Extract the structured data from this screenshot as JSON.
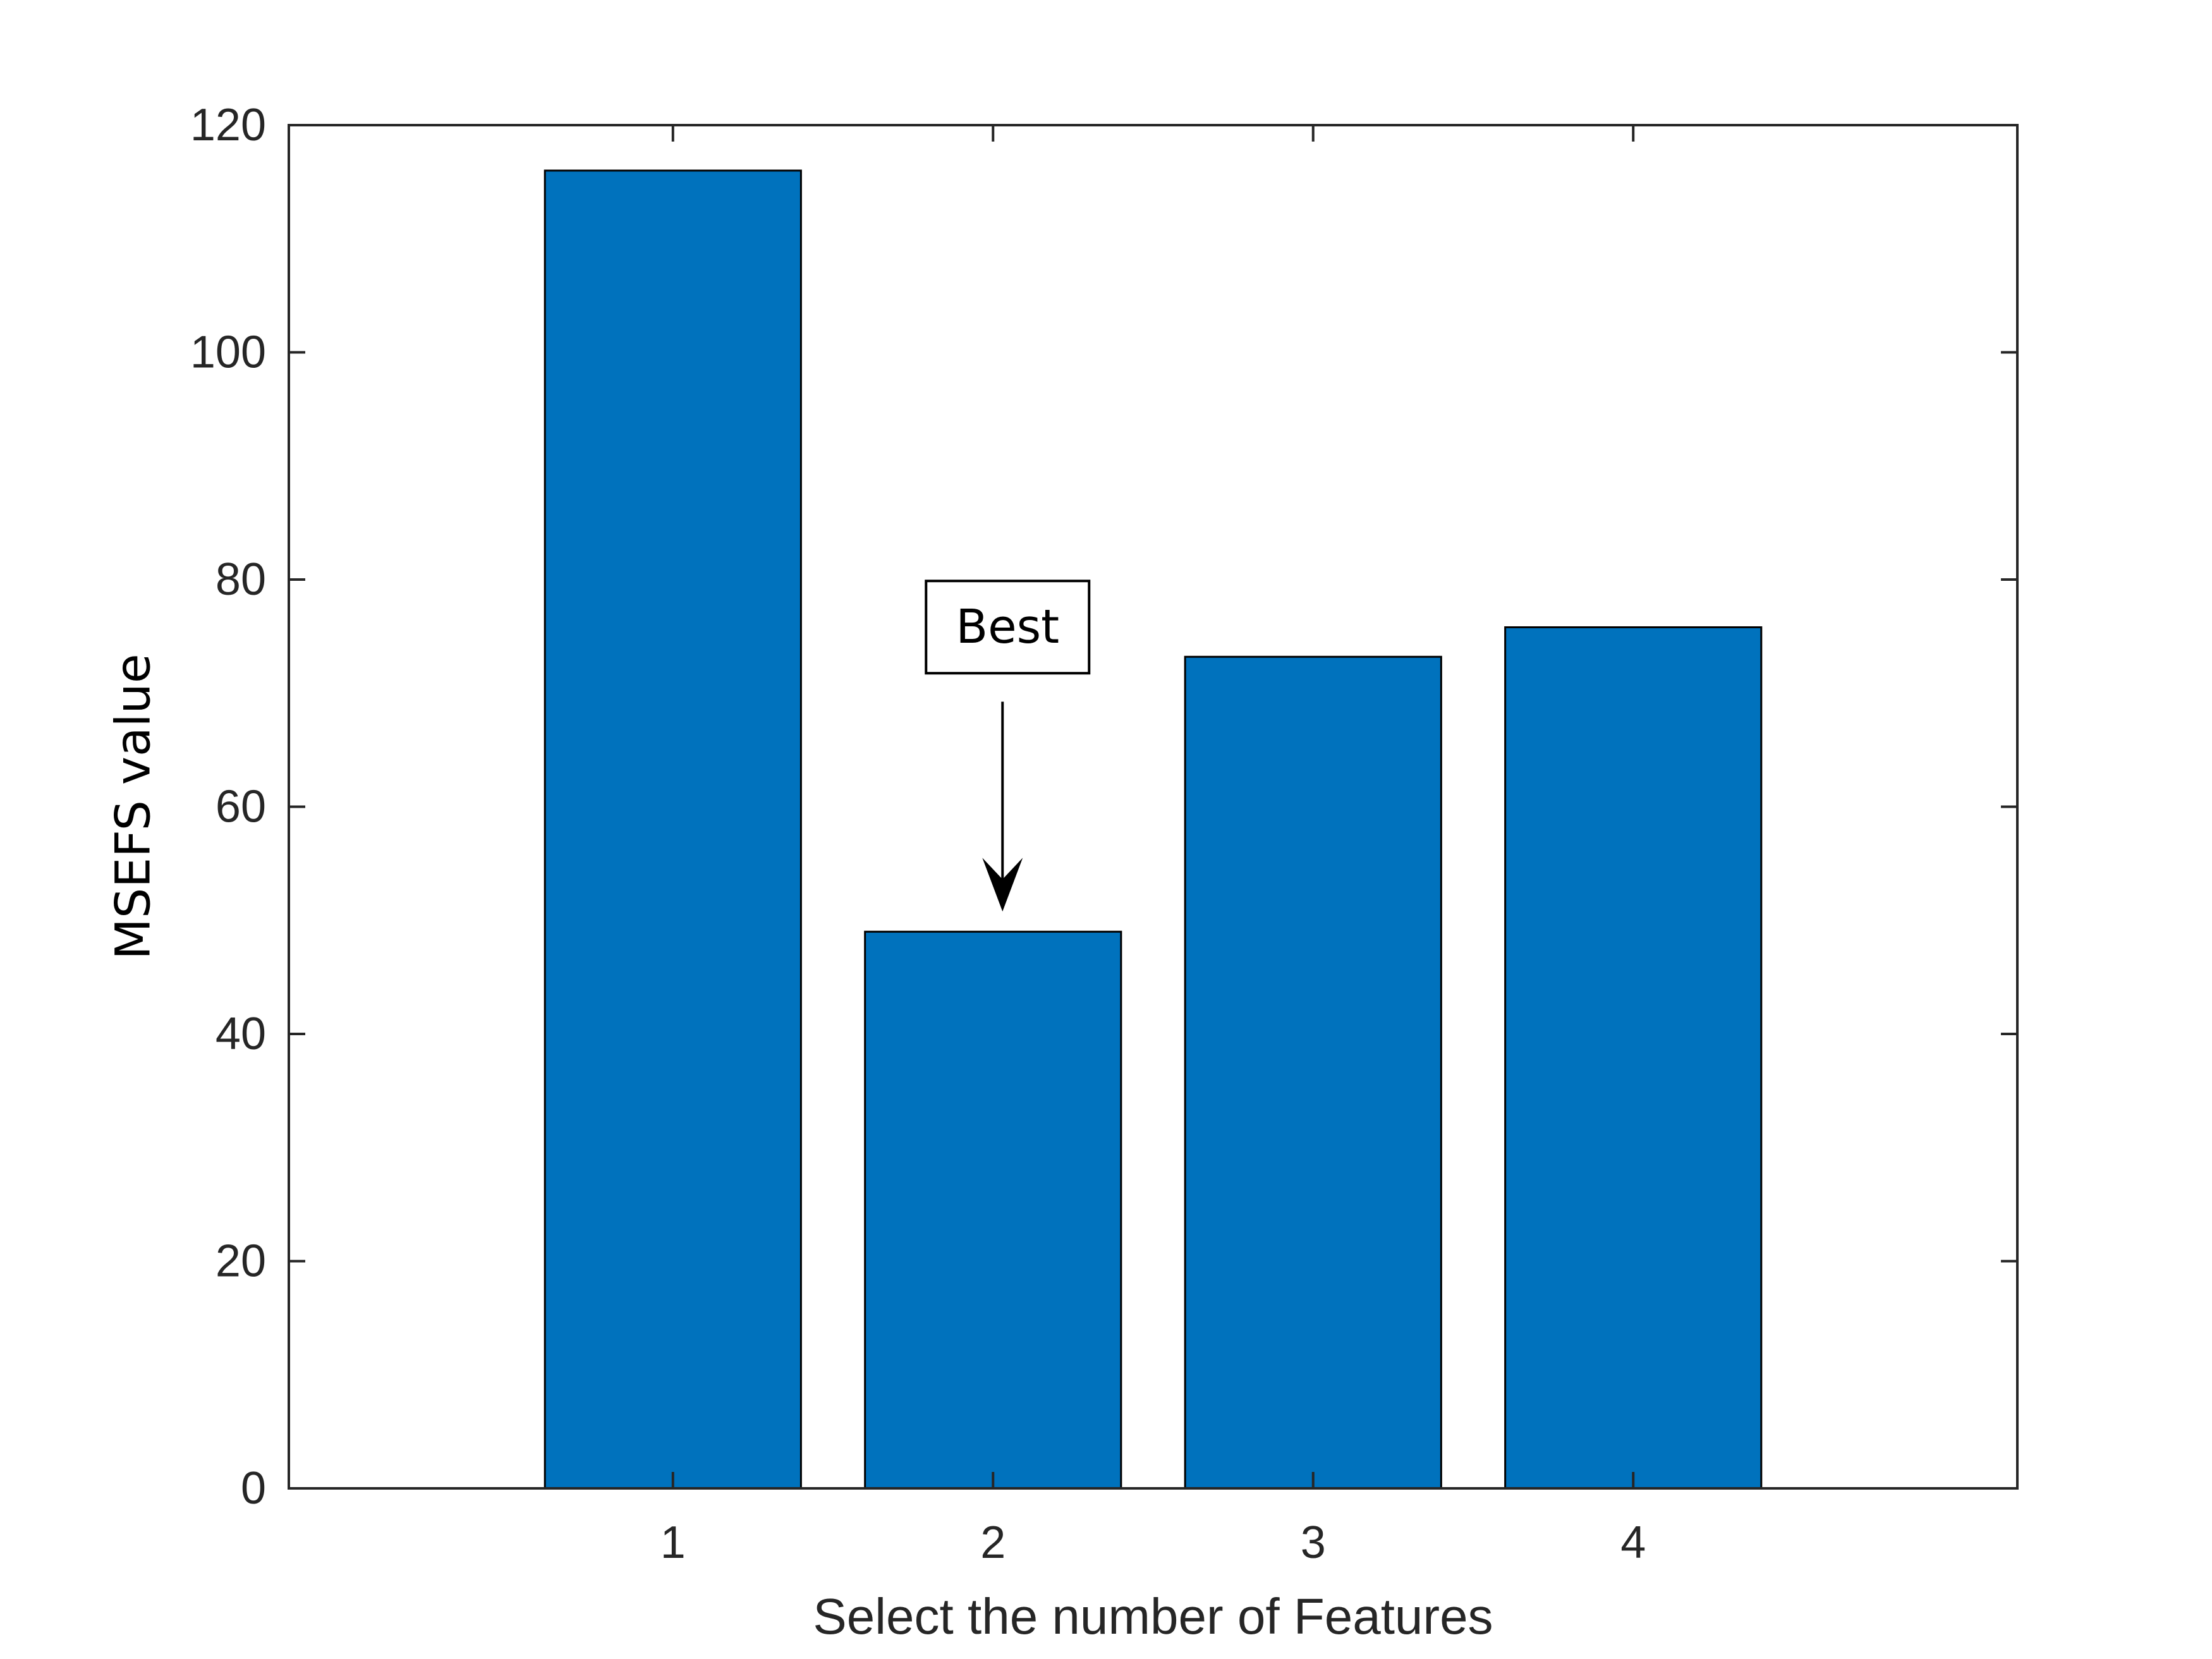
{
  "chart_data": {
    "type": "bar",
    "categories": [
      "1",
      "2",
      "3",
      "4"
    ],
    "values": [
      116,
      49,
      73.2,
      75.8
    ],
    "xlabel": "Select the number of Features",
    "ylabel": "MSEFS value",
    "ylim": [
      0,
      120
    ],
    "xlim": [
      -0.2,
      5.2
    ],
    "yticks": [
      "0",
      "20",
      "40",
      "60",
      "80",
      "100",
      "120"
    ],
    "bar_color": "#0072BD",
    "grid": false,
    "annotation": {
      "text": "Best",
      "target_category": "2"
    }
  }
}
